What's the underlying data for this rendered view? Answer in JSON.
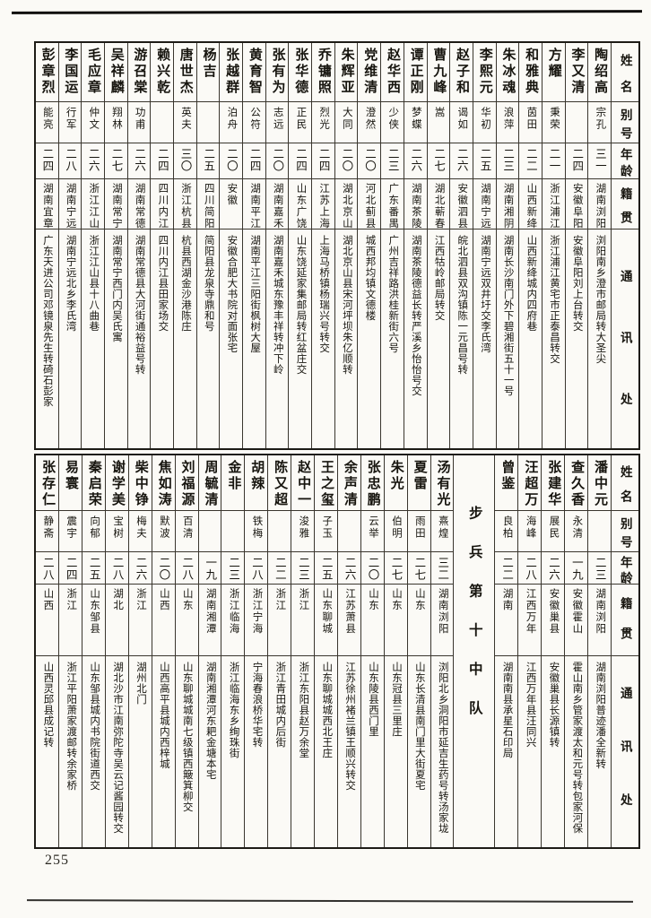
{
  "page_number": "255",
  "unit_label": "步兵第十中队",
  "headers": {
    "name": "姓名",
    "alias": "别号",
    "age": "年龄",
    "native": "籍贯",
    "address": "通讯处"
  },
  "tables": [
    {
      "id": "table-top",
      "people": [
        {
          "name": "陶绍高",
          "alias": "宗孔",
          "age": "三一",
          "native": "湖南浏阳",
          "address": "浏阳南乡澄市邮局转大圣尖"
        },
        {
          "name": "李又清",
          "alias": "",
          "age": "二四",
          "native": "安徽阜阳",
          "address": "安徽阜阳刘上台转交"
        },
        {
          "name": "方耀",
          "alias": "秉荣",
          "age": "二一",
          "native": "浙江浦江",
          "address": "浙江浦江黄宅市正泰昌转交"
        },
        {
          "name": "和雅典",
          "alias": "茵田",
          "age": "二二",
          "native": "山西新绛",
          "address": "山西新绛城内四府巷"
        },
        {
          "name": "朱冰魂",
          "alias": "浪萍",
          "age": "二三",
          "native": "湖南湘阴",
          "address": "湖南长沙南门外下碧湘街五十一号"
        },
        {
          "name": "李熙元",
          "alias": "华初",
          "age": "二五",
          "native": "湖南宁远",
          "address": "湖南宁远双井圩交李氏湾"
        },
        {
          "name": "赵子和",
          "alias": "谒如",
          "age": "二六",
          "native": "安徽泗县",
          "address": "皖北泗县双沟镇陈一元昌号转"
        },
        {
          "name": "曹九峰",
          "alias": "嵩",
          "age": "二七",
          "native": "湖北蕲春",
          "address": "江西牯岭邮局转交"
        },
        {
          "name": "谭正刚",
          "alias": "梦蝶",
          "age": "二六",
          "native": "湖南茶陵",
          "address": "湖南茶陵德益长转严溪乡怡怡号交"
        },
        {
          "name": "赵华西",
          "alias": "少侠",
          "age": "二三",
          "native": "广东番禺",
          "address": "广州吉祥路洪桂新街六号"
        },
        {
          "name": "党维清",
          "alias": "澄然",
          "age": "二〇",
          "native": "河北蓟县",
          "address": "城西邦均镇文德楼"
        },
        {
          "name": "朱辉亚",
          "alias": "大同",
          "age": "二〇",
          "native": "湖北京山",
          "address": "湖北京山县宋河坪坝朱亿顺转"
        },
        {
          "name": "乔镛照",
          "alias": "烈光",
          "age": "二四",
          "native": "江苏上海",
          "address": "上海马桥镇杨瑞兴号转交"
        },
        {
          "name": "张华德",
          "alias": "正民",
          "age": "二四",
          "native": "山东广饶",
          "address": "山东饶延家集邮局转红盆庄交"
        },
        {
          "name": "张有为",
          "alias": "志远",
          "age": "二〇",
          "native": "湖南嘉禾",
          "address": "湖南嘉禾城东豫丰祥转冲下岭"
        },
        {
          "name": "黄育智",
          "alias": "公符",
          "age": "二四",
          "native": "湖南平江",
          "address": "湖南平江三阳街枫树大屋"
        },
        {
          "name": "张越群",
          "alias": "泊舟",
          "age": "二〇",
          "native": "安徽",
          "address": "安徽合肥大书院对面张宅"
        },
        {
          "name": "杨吉",
          "alias": "",
          "age": "二五",
          "native": "四川简阳",
          "address": "简阳县龙泉寺鼎和号"
        },
        {
          "name": "唐世杰",
          "alias": "英夫",
          "age": "三〇",
          "native": "浙江杭县",
          "address": "杭县西湖金沙港陈庄"
        },
        {
          "name": "赖兴乾",
          "alias": "",
          "age": "二四",
          "native": "四川内江",
          "address": "四川内江县田家场交"
        },
        {
          "name": "游召棠",
          "alias": "功甫",
          "age": "二六",
          "native": "湖南常德",
          "address": "湖南常德县大河街通裕益号转"
        },
        {
          "name": "吴祥麟",
          "alias": "翔林",
          "age": "二七",
          "native": "湖南常宁",
          "address": "湖南常宁西门内吴氏寓"
        },
        {
          "name": "毛应章",
          "alias": "仲文",
          "age": "二六",
          "native": "浙江江山",
          "address": "浙江江山县十八曲巷"
        },
        {
          "name": "李国运",
          "alias": "行军",
          "age": "二八",
          "native": "湖南宁远",
          "address": "湖南宁远北乡李氏湾"
        },
        {
          "name": "彭章烈",
          "alias": "能亮",
          "age": "二四",
          "native": "湖南宜章",
          "address": "广东天进公司邓镜泉先生转碕石彭家"
        }
      ]
    },
    {
      "id": "table-bottom",
      "people": [
        {
          "name": "潘中元",
          "alias": "",
          "age": "二三",
          "native": "湖南浏阳",
          "address": "湖南浏阳普迹潘全新转"
        },
        {
          "name": "查久香",
          "alias": "永清",
          "age": "一九",
          "native": "安徽霍山",
          "address": "霍山南乡管家渡太和元号转包家河保"
        },
        {
          "name": "张建华",
          "alias": "展民",
          "age": "二六",
          "native": "安徽巢县",
          "address": "安徽巢县长源镇转"
        },
        {
          "name": "汪超万",
          "alias": "海峰",
          "age": "二八",
          "native": "江西万年",
          "address": "江西万年县汪同兴"
        },
        {
          "name": "曾鉴",
          "alias": "良柏",
          "age": "二二",
          "native": "湖南",
          "address": "湖南南县承星石印局"
        },
        {
          "unit": true
        },
        {
          "name": "汤有光",
          "alias": "熹煌",
          "age": "三二",
          "native": "湖南浏阳",
          "address": "浏阳北乡洞阳市延吉生药号转汤家垅"
        },
        {
          "name": "夏雷",
          "alias": "雨田",
          "age": "二七",
          "native": "山东",
          "address": "山东长清县南门里大街夏宅"
        },
        {
          "name": "朱光",
          "alias": "伯明",
          "age": "二七",
          "native": "山东",
          "address": "山东冠县三里庄"
        },
        {
          "name": "张忠鹏",
          "alias": "云举",
          "age": "二〇",
          "native": "山东",
          "address": "山东陵县西门里"
        },
        {
          "name": "余声清",
          "alias": "",
          "age": "二六",
          "native": "江苏萧县",
          "address": "江苏徐州褚兰镇王顺兴转交"
        },
        {
          "name": "王之玺",
          "alias": "子玉",
          "age": "二五",
          "native": "山东聊城",
          "address": "山东聊城城西北王庄"
        },
        {
          "name": "赵中一",
          "alias": "浚雅",
          "age": "二三",
          "native": "浙江",
          "address": "浙江东阳县赵万余堂"
        },
        {
          "name": "陈又超",
          "alias": "",
          "age": "二二",
          "native": "浙江",
          "address": "浙江青田城内后街"
        },
        {
          "name": "胡辣",
          "alias": "铁梅",
          "age": "二八",
          "native": "浙江宁海",
          "address": "宁海春浪桥华宅转"
        },
        {
          "name": "金非",
          "alias": "",
          "age": "二三",
          "native": "浙江临海",
          "address": "浙江临海东乡绚珠街"
        },
        {
          "name": "周毓清",
          "alias": "",
          "age": "一九",
          "native": "湖南湘潭",
          "address": "湖南湘潭河东耙金塘本宅"
        },
        {
          "name": "刘福源",
          "alias": "百清",
          "age": "二八",
          "native": "山东",
          "address": "山东聊城城南七级镇西簸箕柳交"
        },
        {
          "name": "焦如涛",
          "alias": "默波",
          "age": "二〇",
          "native": "山西",
          "address": "山西高平县城内西梓城"
        },
        {
          "name": "柴中铮",
          "alias": "梅夫",
          "age": "二六",
          "native": "浙江",
          "address": "湖州北门"
        },
        {
          "name": "谢学美",
          "alias": "宝树",
          "age": "二八",
          "native": "湖北",
          "address": "湖北沙市江南弥陀寺吴云记酱园转交"
        },
        {
          "name": "秦启荣",
          "alias": "向郁",
          "age": "二五",
          "native": "山东邹县",
          "address": "山东邹县城内书院街道西交"
        },
        {
          "name": "易寰",
          "alias": "震宇",
          "age": "二四",
          "native": "浙江",
          "address": "浙江平阳萧家渡邮转余家桥"
        },
        {
          "name": "张存仁",
          "alias": "静斋",
          "age": "二八",
          "native": "山西",
          "address": "山西灵邱县成记转"
        }
      ]
    }
  ]
}
